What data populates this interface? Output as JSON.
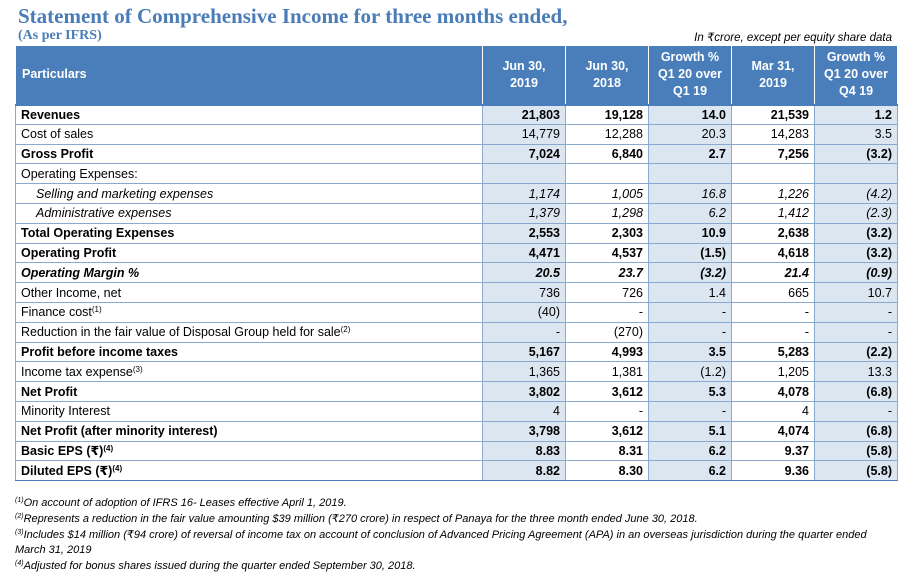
{
  "title": "Statement of Comprehensive Income for three months ended,",
  "subtitle": "(As per IFRS)",
  "unit_note": "In ₹crore, except per equity share data",
  "columns": [
    {
      "line1": "Particulars",
      "line2": "",
      "line3": ""
    },
    {
      "line1": "Jun 30,",
      "line2": "2019",
      "line3": ""
    },
    {
      "line1": "Jun 30,",
      "line2": "2018",
      "line3": ""
    },
    {
      "line1": "Growth %",
      "line2": "Q1 20 over",
      "line3": "Q1 19"
    },
    {
      "line1": "Mar 31,",
      "line2": "2019",
      "line3": ""
    },
    {
      "line1": "Growth %",
      "line2": "Q1 20 over",
      "line3": "Q4 19"
    }
  ],
  "rows": [
    {
      "label": "Revenues",
      "sup": "",
      "style": "bold",
      "values": [
        "21,803",
        "19,128",
        "14.0",
        "21,539",
        "1.2"
      ]
    },
    {
      "label": "Cost of sales",
      "sup": "",
      "style": "",
      "values": [
        "14,779",
        "12,288",
        "20.3",
        "14,283",
        "3.5"
      ]
    },
    {
      "label": "Gross Profit",
      "sup": "",
      "style": "bold",
      "values": [
        "7,024",
        "6,840",
        "2.7",
        "7,256",
        "(3.2)"
      ]
    },
    {
      "label": "Operating Expenses:",
      "sup": "",
      "style": "",
      "values": [
        "",
        "",
        "",
        "",
        ""
      ]
    },
    {
      "label": "Selling and marketing expenses",
      "sup": "",
      "style": "italic indent",
      "values": [
        "1,174",
        "1,005",
        "16.8",
        "1,226",
        "(4.2)"
      ]
    },
    {
      "label": "Administrative expenses",
      "sup": "",
      "style": "italic indent",
      "values": [
        "1,379",
        "1,298",
        "6.2",
        "1,412",
        "(2.3)"
      ]
    },
    {
      "label": "Total Operating Expenses",
      "sup": "",
      "style": "bold",
      "values": [
        "2,553",
        "2,303",
        "10.9",
        "2,638",
        "(3.2)"
      ]
    },
    {
      "label": "Operating Profit",
      "sup": "",
      "style": "bold",
      "values": [
        "4,471",
        "4,537",
        "(1.5)",
        "4,618",
        "(3.2)"
      ]
    },
    {
      "label": "Operating Margin %",
      "sup": "",
      "style": "bold italic",
      "values": [
        "20.5",
        "23.7",
        "(3.2)",
        "21.4",
        "(0.9)"
      ]
    },
    {
      "label": "Other Income, net",
      "sup": "",
      "style": "",
      "values": [
        "736",
        "726",
        "1.4",
        "665",
        "10.7"
      ]
    },
    {
      "label": "Finance cost",
      "sup": "(1)",
      "style": "",
      "values": [
        "(40)",
        "-",
        "-",
        "-",
        "-"
      ]
    },
    {
      "label": "Reduction in the fair value of Disposal Group held for sale",
      "sup": "(2)",
      "style": "",
      "values": [
        "-",
        "(270)",
        "-",
        "-",
        "-"
      ]
    },
    {
      "label": "Profit before income taxes",
      "sup": "",
      "style": "bold",
      "values": [
        "5,167",
        "4,993",
        "3.5",
        "5,283",
        "(2.2)"
      ]
    },
    {
      "label": "Income tax expense",
      "sup": "(3)",
      "style": "",
      "values": [
        "1,365",
        "1,381",
        "(1.2)",
        "1,205",
        "13.3"
      ]
    },
    {
      "label": "Net Profit",
      "sup": "",
      "style": "bold",
      "values": [
        "3,802",
        "3,612",
        "5.3",
        "4,078",
        "(6.8)"
      ]
    },
    {
      "label": "Minority Interest",
      "sup": "",
      "style": "",
      "values": [
        "4",
        "-",
        "-",
        "4",
        "-"
      ]
    },
    {
      "label": "Net Profit (after minority interest)",
      "sup": "",
      "style": "bold",
      "values": [
        "3,798",
        "3,612",
        "5.1",
        "4,074",
        "(6.8)"
      ]
    },
    {
      "label": "Basic EPS (₹)",
      "sup": "(4)",
      "style": "bold",
      "values": [
        "8.83",
        "8.31",
        "6.2",
        "9.37",
        "(5.8)"
      ]
    },
    {
      "label": "Diluted EPS (₹)",
      "sup": "(4)",
      "style": "bold",
      "values": [
        "8.82",
        "8.30",
        "6.2",
        "9.36",
        "(5.8)"
      ]
    }
  ],
  "footnotes": [
    {
      "mark": "(1)",
      "text": "On account of adoption of IFRS 16- Leases effective April 1, 2019."
    },
    {
      "mark": "(2)",
      "text": "Represents a reduction in the fair value amounting $39 million (₹270 crore) in respect of Panaya for the three month ended June 30, 2018."
    },
    {
      "mark": "(3)",
      "text": "Includes $14 million (₹94 crore) of reversal of income tax on account of conclusion of Advanced Pricing Agreement (APA) in an overseas jurisdiction during the quarter ended March 31, 2019"
    },
    {
      "mark": "(4)",
      "text": "Adjusted for bonus shares issued during the quarter ended September 30, 2018."
    }
  ],
  "colors": {
    "title": "#4a7cb8",
    "header_bg": "#4a7ebb",
    "shaded_column": "#dce6f1",
    "grid_line": "#8ba9cf"
  }
}
